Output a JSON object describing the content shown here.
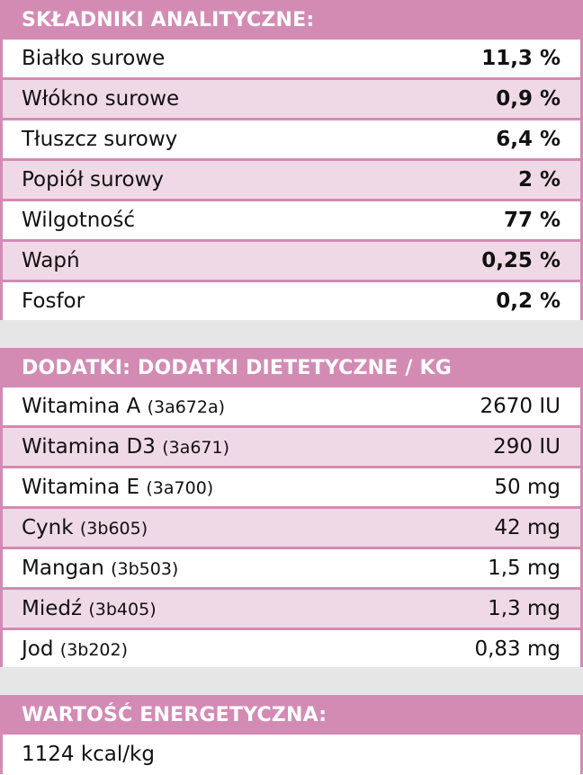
{
  "analytical": {
    "title": "SKŁADNIKI ANALITYCZNE:",
    "rows": [
      {
        "name": "Białko surowe",
        "value": "11,3 %"
      },
      {
        "name": "Włókno surowe",
        "value": "0,9 %"
      },
      {
        "name": "Tłuszcz surowy",
        "value": "6,4 %"
      },
      {
        "name": "Popiół surowy",
        "value": "2 %"
      },
      {
        "name": "Wilgotność",
        "value": "77 %"
      },
      {
        "name": "Wapń",
        "value": "0,25 %"
      },
      {
        "name": "Fosfor",
        "value": "0,2 %"
      }
    ]
  },
  "additives": {
    "title": "DODATKI: DODATKI DIETETYCZNE / KG",
    "rows": [
      {
        "name": "Witamina A",
        "code": "(3a672a)",
        "value": "2670 IU"
      },
      {
        "name": "Witamina D3",
        "code": "(3a671)",
        "value": "290 IU"
      },
      {
        "name": "Witamina E",
        "code": "(3a700)",
        "value": "50 mg"
      },
      {
        "name": "Cynk",
        "code": "(3b605)",
        "value": "42 mg"
      },
      {
        "name": "Mangan",
        "code": "(3b503)",
        "value": "1,5 mg"
      },
      {
        "name": "Miedź",
        "code": "(3b405)",
        "value": "1,3 mg"
      },
      {
        "name": "Jod",
        "code": "(3b202)",
        "value": "0,83 mg"
      }
    ]
  },
  "energy": {
    "title": "WARTOŚĆ ENERGETYCZNA:",
    "value": "1124 kcal/kg"
  },
  "colors": {
    "accent": "#d38bb4",
    "alt_row": "#f0d9e6",
    "gap": "#e6e6e6"
  }
}
